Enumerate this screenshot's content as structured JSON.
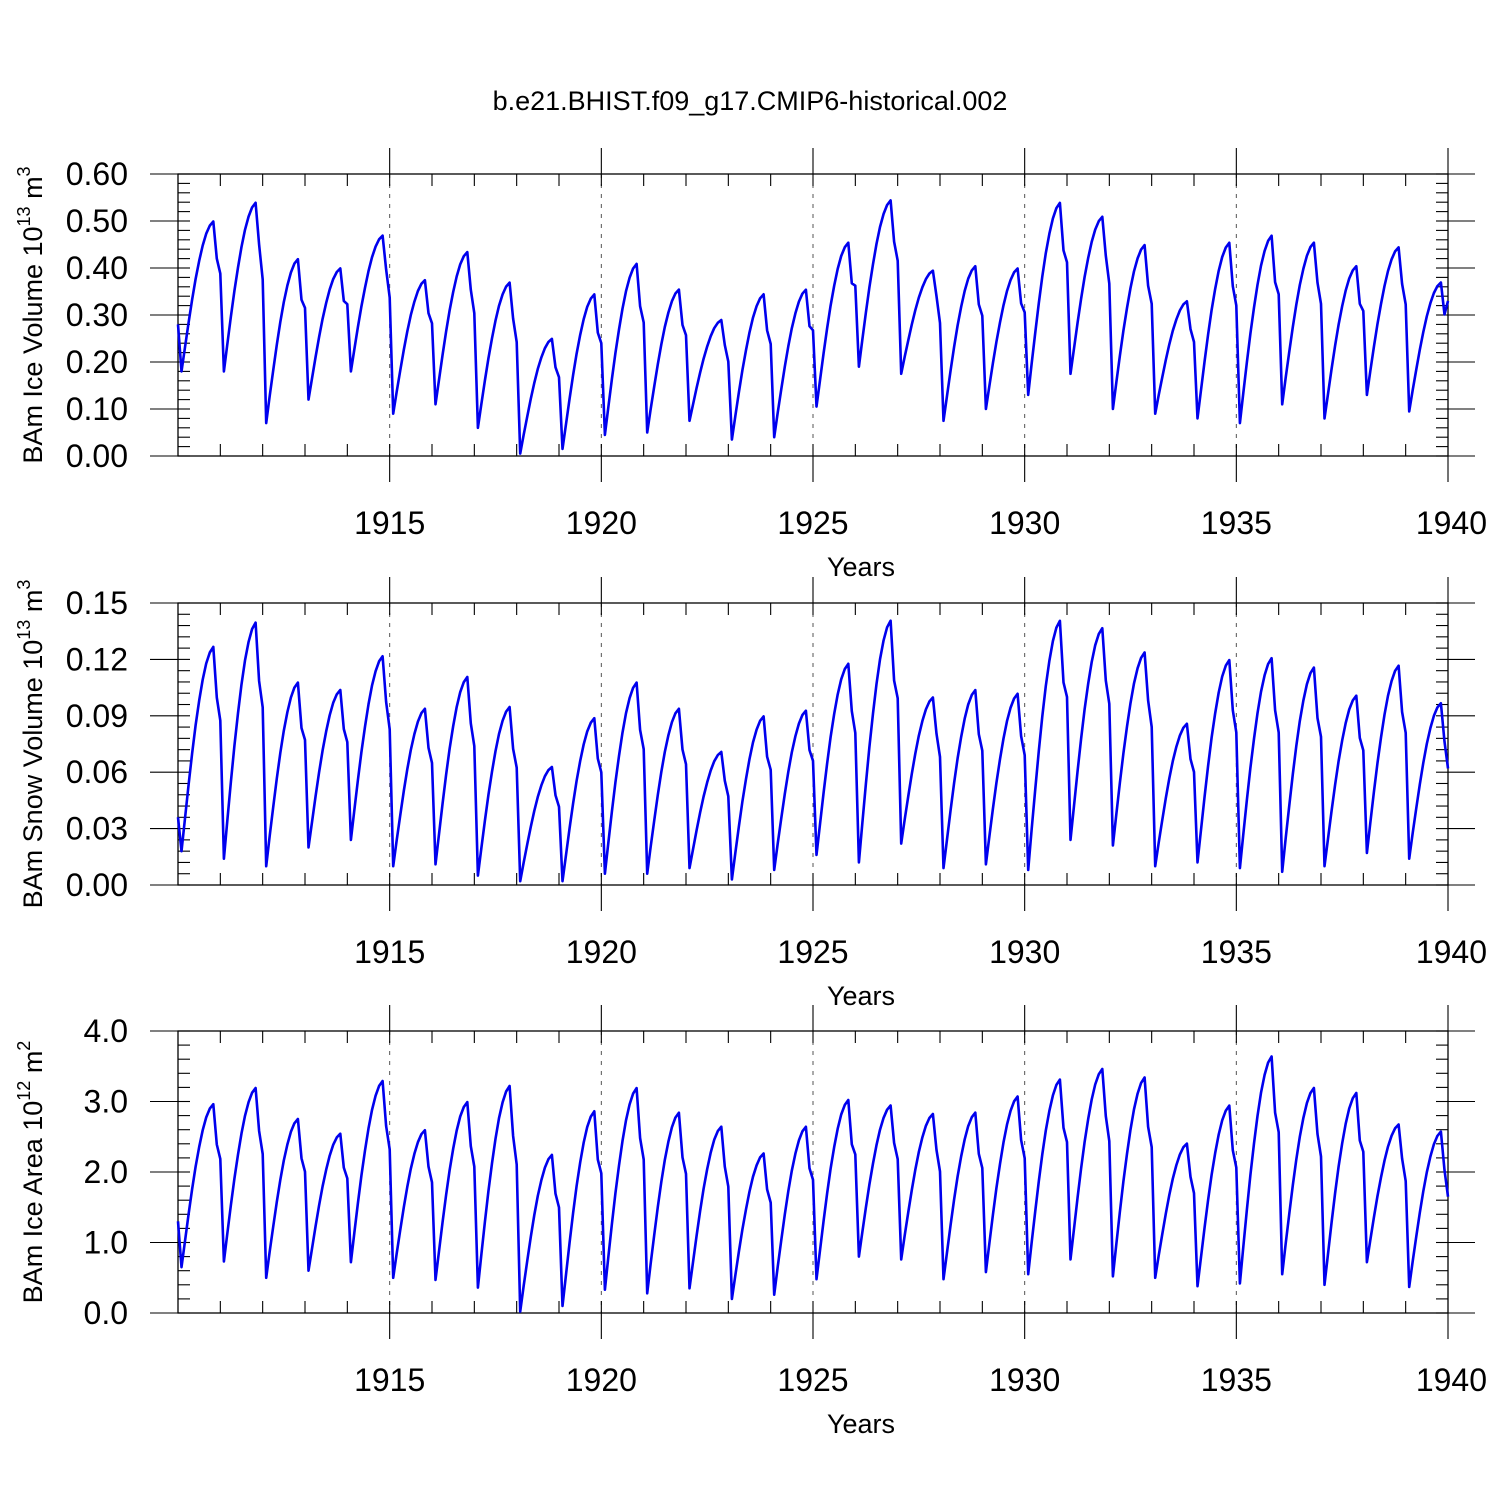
{
  "title": "b.e21.BHIST.f09_g17.CMIP6-historical.002",
  "colors": {
    "series": "#0000ee",
    "axis": "#000000",
    "grid": "#555555"
  },
  "chart_data": [
    {
      "type": "line",
      "title": "b.e21.BHIST.f09_g17.CMIP6-historical.002",
      "xlabel": "Years",
      "ylabel_main": "BAm Ice Volume 10",
      "ylabel_exp": "13",
      "ylabel_unit": " m",
      "ylabel_unit_exp": "3",
      "xlim": [
        1910,
        1940
      ],
      "ylim": [
        0,
        0.6
      ],
      "yticks": [
        "0.00",
        "0.10",
        "0.20",
        "0.30",
        "0.40",
        "0.50",
        "0.60"
      ],
      "ytick_values": [
        0,
        0.1,
        0.2,
        0.3,
        0.4,
        0.5,
        0.6
      ],
      "ytick_minor_step": 0.02,
      "xticks": [
        "1915",
        "1920",
        "1925",
        "1930",
        "1935",
        "1940"
      ],
      "xtick_values": [
        1915,
        1920,
        1925,
        1930,
        1935,
        1940
      ],
      "xtick_minor_step": 1,
      "grid": "vertical dashed at major x ticks",
      "annual": {
        "min": [
          0.18,
          0.18,
          0.07,
          0.12,
          0.18,
          0.09,
          0.11,
          0.06,
          0.005,
          0.015,
          0.045,
          0.05,
          0.075,
          0.035,
          0.04,
          0.105,
          0.19,
          0.175,
          0.075,
          0.1,
          0.13,
          0.175,
          0.1,
          0.09,
          0.08,
          0.07,
          0.11,
          0.08,
          0.13,
          0.095
        ],
        "max": [
          0.5,
          0.54,
          0.42,
          0.4,
          0.47,
          0.375,
          0.435,
          0.37,
          0.25,
          0.345,
          0.41,
          0.355,
          0.29,
          0.345,
          0.355,
          0.455,
          0.545,
          0.395,
          0.405,
          0.4,
          0.54,
          0.51,
          0.45,
          0.33,
          0.455,
          0.47,
          0.455,
          0.405,
          0.445,
          0.37
        ]
      },
      "series": [
        {
          "start": 0.28,
          "end": 0.33
        }
      ]
    },
    {
      "type": "line",
      "xlabel": "Years",
      "ylabel_main": "BAm Snow Volume 10",
      "ylabel_exp": "13",
      "ylabel_unit": " m",
      "ylabel_unit_exp": "3",
      "xlim": [
        1910,
        1940
      ],
      "ylim": [
        0,
        0.15
      ],
      "yticks": [
        "0.00",
        "0.03",
        "0.06",
        "0.09",
        "0.12",
        "0.15"
      ],
      "ytick_values": [
        0,
        0.03,
        0.06,
        0.09,
        0.12,
        0.15
      ],
      "ytick_minor_step": 0.006,
      "xticks": [
        "1915",
        "1920",
        "1925",
        "1930",
        "1935",
        "1940"
      ],
      "xtick_values": [
        1915,
        1920,
        1925,
        1930,
        1935,
        1940
      ],
      "xtick_minor_step": 1,
      "grid": "vertical dashed at major x ticks",
      "annual": {
        "min": [
          0.018,
          0.014,
          0.01,
          0.02,
          0.024,
          0.01,
          0.011,
          0.005,
          0.002,
          0.002,
          0.006,
          0.006,
          0.009,
          0.003,
          0.008,
          0.016,
          0.012,
          0.022,
          0.009,
          0.011,
          0.008,
          0.024,
          0.021,
          0.01,
          0.012,
          0.009,
          0.007,
          0.01,
          0.017,
          0.014
        ],
        "max": [
          0.127,
          0.14,
          0.108,
          0.104,
          0.122,
          0.094,
          0.111,
          0.095,
          0.063,
          0.089,
          0.108,
          0.094,
          0.071,
          0.09,
          0.093,
          0.118,
          0.141,
          0.1,
          0.104,
          0.102,
          0.141,
          0.137,
          0.124,
          0.086,
          0.12,
          0.121,
          0.116,
          0.101,
          0.117,
          0.097
        ]
      },
      "series": [
        {
          "start": 0.036,
          "end": 0.062
        }
      ]
    },
    {
      "type": "line",
      "xlabel": "Years",
      "ylabel_main": "BAm Ice Area 10",
      "ylabel_exp": "12",
      "ylabel_unit": " m",
      "ylabel_unit_exp": "2",
      "xlim": [
        1910,
        1940
      ],
      "ylim": [
        0,
        4.0
      ],
      "yticks": [
        "0.0",
        "1.0",
        "2.0",
        "3.0",
        "4.0"
      ],
      "ytick_values": [
        0,
        1,
        2,
        3,
        4
      ],
      "ytick_minor_step": 0.2,
      "xticks": [
        "1915",
        "1920",
        "1925",
        "1930",
        "1935",
        "1940"
      ],
      "xtick_values": [
        1915,
        1920,
        1925,
        1930,
        1935,
        1940
      ],
      "xtick_minor_step": 1,
      "grid": "vertical dashed at major x ticks",
      "annual": {
        "min": [
          0.65,
          0.73,
          0.5,
          0.6,
          0.72,
          0.5,
          0.47,
          0.36,
          0.02,
          0.1,
          0.33,
          0.28,
          0.35,
          0.2,
          0.26,
          0.48,
          0.8,
          0.76,
          0.48,
          0.58,
          0.55,
          0.76,
          0.52,
          0.5,
          0.38,
          0.42,
          0.55,
          0.4,
          0.72,
          0.37
        ],
        "max": [
          2.97,
          3.2,
          2.76,
          2.55,
          3.3,
          2.6,
          3.0,
          3.23,
          2.25,
          2.87,
          3.2,
          2.85,
          2.65,
          2.27,
          2.65,
          3.03,
          2.95,
          2.83,
          2.85,
          3.08,
          3.32,
          3.47,
          3.35,
          2.41,
          2.95,
          3.65,
          3.2,
          3.13,
          2.68,
          2.58
        ]
      },
      "series": [
        {
          "start": 1.3,
          "end": 1.65
        }
      ]
    }
  ]
}
